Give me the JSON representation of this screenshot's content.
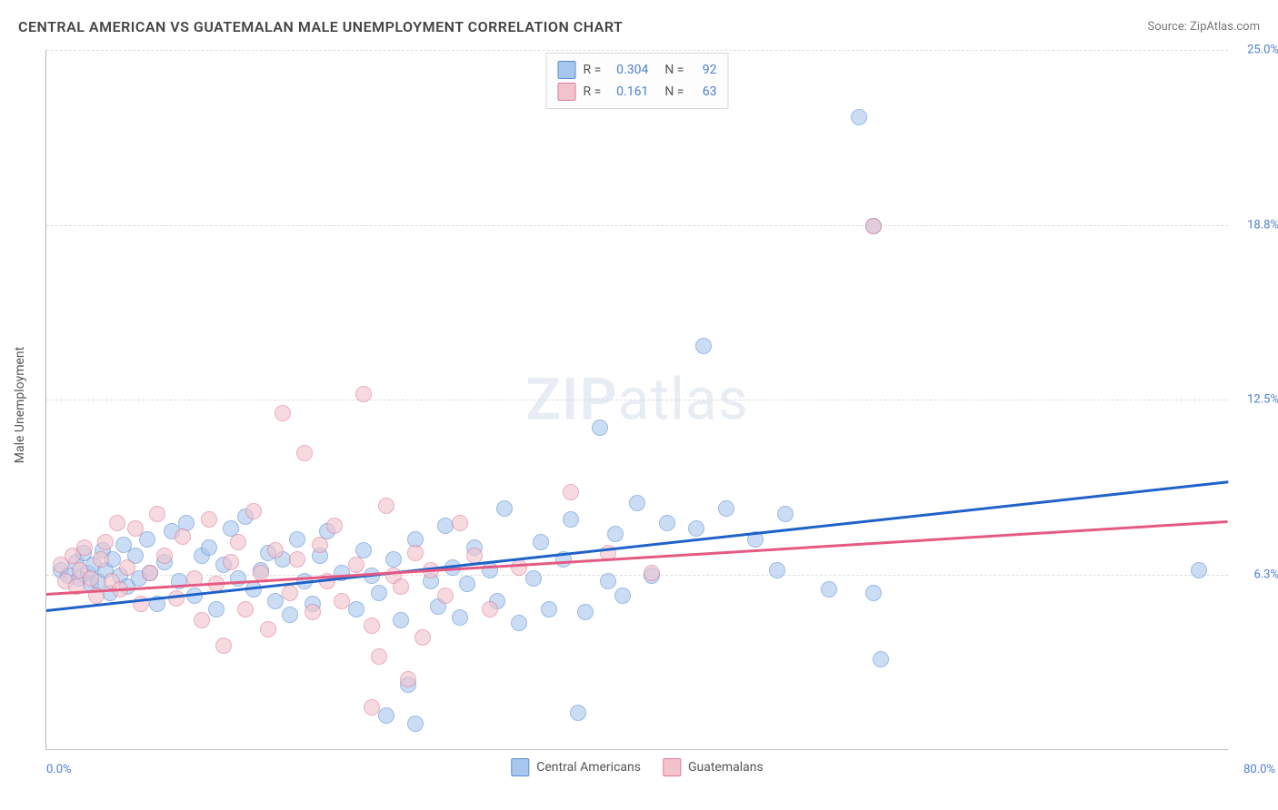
{
  "header": {
    "title": "CENTRAL AMERICAN VS GUATEMALAN MALE UNEMPLOYMENT CORRELATION CHART",
    "source_prefix": "Source: ",
    "source_name": "ZipAtlas.com"
  },
  "watermark": {
    "zip": "ZIP",
    "atlas": "atlas"
  },
  "chart": {
    "type": "scatter",
    "ylabel": "Male Unemployment",
    "xlim": [
      0,
      80
    ],
    "ylim": [
      0,
      25
    ],
    "xtick_labels": {
      "min": "0.0%",
      "max": "80.0%"
    },
    "ytick_labels": [
      "6.3%",
      "12.5%",
      "18.8%",
      "25.0%"
    ],
    "ytick_values": [
      6.25,
      12.5,
      18.75,
      25.0
    ],
    "background_color": "#ffffff",
    "grid_color": "#dddddd",
    "axis_color": "#bbbbbb",
    "tick_label_color": "#4c7ecf",
    "marker_radius": 8,
    "marker_opacity": 0.6,
    "series": [
      {
        "name": "Central Americans",
        "fill_color": "#a7c7ef",
        "stroke_color": "#5a8ed0",
        "line_color": "#1f62c9",
        "r_label": "R =",
        "r_value": "0.304",
        "n_label": "N =",
        "n_value": "92",
        "trend": {
          "x1": 0,
          "y1": 5.0,
          "x2": 80,
          "y2": 9.6
        },
        "points": [
          [
            1,
            6.4
          ],
          [
            1.5,
            6.2
          ],
          [
            2,
            6.7
          ],
          [
            2.2,
            6.1
          ],
          [
            2.5,
            7.0
          ],
          [
            2.8,
            6.3
          ],
          [
            3,
            5.9
          ],
          [
            3.2,
            6.6
          ],
          [
            3.5,
            6.0
          ],
          [
            3.8,
            7.1
          ],
          [
            4,
            6.4
          ],
          [
            4.3,
            5.6
          ],
          [
            4.5,
            6.8
          ],
          [
            5,
            6.2
          ],
          [
            5.2,
            7.3
          ],
          [
            5.5,
            5.8
          ],
          [
            6,
            6.9
          ],
          [
            6.3,
            6.1
          ],
          [
            6.8,
            7.5
          ],
          [
            7,
            6.3
          ],
          [
            7.5,
            5.2
          ],
          [
            8,
            6.7
          ],
          [
            8.5,
            7.8
          ],
          [
            9,
            6.0
          ],
          [
            9.5,
            8.1
          ],
          [
            10,
            5.5
          ],
          [
            10.5,
            6.9
          ],
          [
            11,
            7.2
          ],
          [
            11.5,
            5.0
          ],
          [
            12,
            6.6
          ],
          [
            12.5,
            7.9
          ],
          [
            13,
            6.1
          ],
          [
            13.5,
            8.3
          ],
          [
            14,
            5.7
          ],
          [
            14.5,
            6.4
          ],
          [
            15,
            7.0
          ],
          [
            15.5,
            5.3
          ],
          [
            16,
            6.8
          ],
          [
            16.5,
            4.8
          ],
          [
            17,
            7.5
          ],
          [
            17.5,
            6.0
          ],
          [
            18,
            5.2
          ],
          [
            18.5,
            6.9
          ],
          [
            19,
            7.8
          ],
          [
            20,
            6.3
          ],
          [
            21,
            5.0
          ],
          [
            21.5,
            7.1
          ],
          [
            22,
            6.2
          ],
          [
            22.5,
            5.6
          ],
          [
            23,
            1.2
          ],
          [
            23.5,
            6.8
          ],
          [
            24,
            4.6
          ],
          [
            24.5,
            2.3
          ],
          [
            25,
            7.5
          ],
          [
            25,
            0.9
          ],
          [
            26,
            6.0
          ],
          [
            26.5,
            5.1
          ],
          [
            27,
            8.0
          ],
          [
            27.5,
            6.5
          ],
          [
            28,
            4.7
          ],
          [
            28.5,
            5.9
          ],
          [
            29,
            7.2
          ],
          [
            30,
            6.4
          ],
          [
            30.5,
            5.3
          ],
          [
            31,
            8.6
          ],
          [
            32,
            4.5
          ],
          [
            33,
            6.1
          ],
          [
            33.5,
            7.4
          ],
          [
            34,
            5.0
          ],
          [
            35,
            6.8
          ],
          [
            35.5,
            8.2
          ],
          [
            36,
            1.3
          ],
          [
            36.5,
            4.9
          ],
          [
            37.5,
            11.5
          ],
          [
            38,
            6.0
          ],
          [
            38.5,
            7.7
          ],
          [
            39,
            5.5
          ],
          [
            40,
            8.8
          ],
          [
            41,
            6.2
          ],
          [
            42,
            8.1
          ],
          [
            44,
            7.9
          ],
          [
            44.5,
            14.4
          ],
          [
            46,
            8.6
          ],
          [
            48,
            7.5
          ],
          [
            49.5,
            6.4
          ],
          [
            50,
            8.4
          ],
          [
            53,
            5.7
          ],
          [
            55,
            22.6
          ],
          [
            56,
            18.7
          ],
          [
            56,
            5.6
          ],
          [
            56.5,
            3.2
          ],
          [
            78,
            6.4
          ]
        ]
      },
      {
        "name": "Guatemalans",
        "fill_color": "#f3c3cd",
        "stroke_color": "#de7a95",
        "line_color": "#e55a82",
        "r_label": "R =",
        "r_value": "0.161",
        "n_label": "N =",
        "n_value": "63",
        "trend": {
          "x1": 0,
          "y1": 5.6,
          "x2": 80,
          "y2": 8.2
        },
        "points": [
          [
            1,
            6.6
          ],
          [
            1.3,
            6.0
          ],
          [
            1.8,
            6.9
          ],
          [
            2,
            5.8
          ],
          [
            2.3,
            6.4
          ],
          [
            2.6,
            7.2
          ],
          [
            3,
            6.1
          ],
          [
            3.4,
            5.5
          ],
          [
            3.7,
            6.8
          ],
          [
            4,
            7.4
          ],
          [
            4.4,
            6.0
          ],
          [
            4.8,
            8.1
          ],
          [
            5,
            5.7
          ],
          [
            5.5,
            6.5
          ],
          [
            6,
            7.9
          ],
          [
            6.4,
            5.2
          ],
          [
            7,
            6.3
          ],
          [
            7.5,
            8.4
          ],
          [
            8,
            6.9
          ],
          [
            8.8,
            5.4
          ],
          [
            9.2,
            7.6
          ],
          [
            10,
            6.1
          ],
          [
            10.5,
            4.6
          ],
          [
            11,
            8.2
          ],
          [
            11.5,
            5.9
          ],
          [
            12,
            3.7
          ],
          [
            12.5,
            6.7
          ],
          [
            13,
            7.4
          ],
          [
            13.5,
            5.0
          ],
          [
            14,
            8.5
          ],
          [
            14.5,
            6.3
          ],
          [
            15,
            4.3
          ],
          [
            15.5,
            7.1
          ],
          [
            16,
            12.0
          ],
          [
            16.5,
            5.6
          ],
          [
            17,
            6.8
          ],
          [
            17.5,
            10.6
          ],
          [
            18,
            4.9
          ],
          [
            18.5,
            7.3
          ],
          [
            19,
            6.0
          ],
          [
            19.5,
            8.0
          ],
          [
            20,
            5.3
          ],
          [
            21,
            6.6
          ],
          [
            21.5,
            12.7
          ],
          [
            22,
            4.4
          ],
          [
            22.5,
            3.3
          ],
          [
            22,
            1.5
          ],
          [
            23,
            8.7
          ],
          [
            23.5,
            6.2
          ],
          [
            24,
            5.8
          ],
          [
            24.5,
            2.5
          ],
          [
            25,
            7.0
          ],
          [
            25.5,
            4.0
          ],
          [
            26,
            6.4
          ],
          [
            27,
            5.5
          ],
          [
            28,
            8.1
          ],
          [
            29,
            6.9
          ],
          [
            30,
            5.0
          ],
          [
            32,
            6.5
          ],
          [
            35.5,
            9.2
          ],
          [
            38,
            7.0
          ],
          [
            41,
            6.3
          ],
          [
            56,
            18.7
          ]
        ]
      }
    ]
  }
}
